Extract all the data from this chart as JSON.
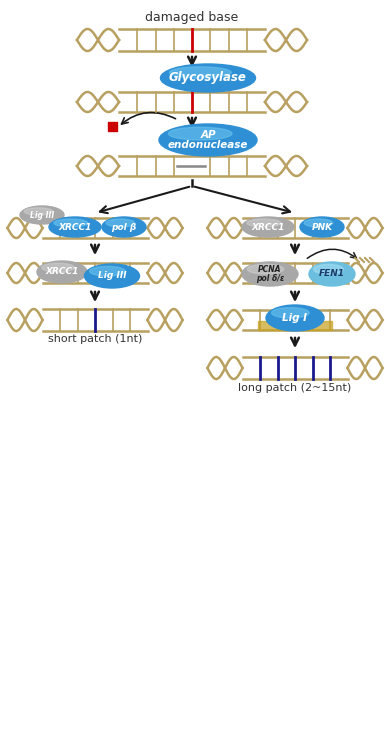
{
  "title": "damaged base",
  "bottom_left_label": "short patch (1nt)",
  "bottom_right_label": "long patch (2~15nt)",
  "bg_color": "#ffffff",
  "dna_color": "#b8a060",
  "damage_color": "#cc0000",
  "new_base_color": "#1a1a8c",
  "blue_protein": "#2e8fd4",
  "blue_protein_hi": "#6ec6f0",
  "gray_protein": "#a8a8a8",
  "gray_protein_hi": "#d0d0d0",
  "ltblue_protein": "#6bbede",
  "ltblue_protein_hi": "#a8dff5",
  "arrow_color": "#1a1a1a",
  "label_color": "#333333"
}
